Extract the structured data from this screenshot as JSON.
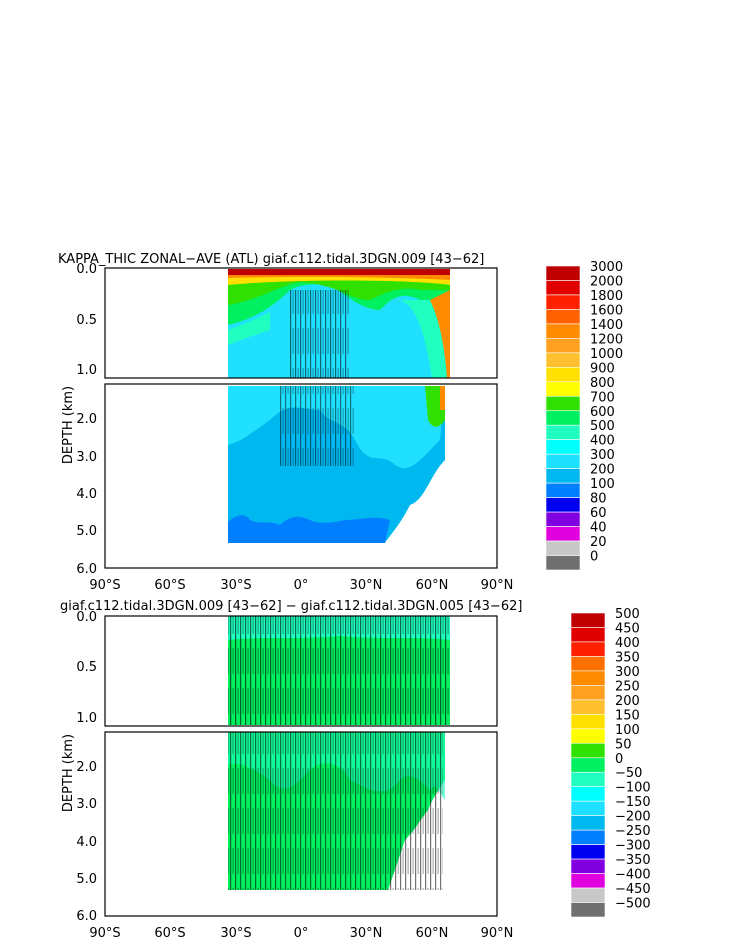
{
  "chart_data": [
    {
      "type": "heatmap",
      "title": "KAPPA_THIC ZONAL−AVE (ATL) giaf.c112.tidal.3DGN.009 [43−62]",
      "ylabel": "DEPTH (km)",
      "x_ticks": [
        "90°S",
        "60°S",
        "30°S",
        "0°",
        "30°N",
        "60°N",
        "90°N"
      ],
      "x_lim": [
        -90,
        90
      ],
      "y_ticks_upper": [
        "0.0",
        "0.5",
        "1.0"
      ],
      "y_ticks_lower": [
        "2.0",
        "3.0",
        "4.0",
        "5.0",
        "6.0"
      ],
      "y_lim_km": [
        6.0,
        0.0
      ],
      "data_lat_range": [
        -34,
        70
      ],
      "colorbar_labels": [
        "3000",
        "2000",
        "1800",
        "1600",
        "1400",
        "1200",
        "1000",
        "900",
        "800",
        "700",
        "600",
        "500",
        "400",
        "300",
        "200",
        "100",
        "80",
        "60",
        "40",
        "20",
        "0"
      ],
      "colors": [
        "#c00000",
        "#e00000",
        "#ff2000",
        "#ff6000",
        "#ff8c00",
        "#ffa020",
        "#ffc030",
        "#ffe000",
        "#ffff00",
        "#30e000",
        "#00f060",
        "#20ffc0",
        "#00ffff",
        "#20e0ff",
        "#00b8f0",
        "#0080ff",
        "#0000f0",
        "#8000e0",
        "#e000e0",
        "#c8c8c8",
        "#707070"
      ]
    },
    {
      "type": "heatmap",
      "title": "giaf.c112.tidal.3DGN.009 [43−62] − giaf.c112.tidal.3DGN.005 [43−62]",
      "ylabel": "DEPTH (km)",
      "x_ticks": [
        "90°S",
        "60°S",
        "30°S",
        "0°",
        "30°N",
        "60°N",
        "90°N"
      ],
      "x_lim": [
        -90,
        90
      ],
      "y_ticks_upper": [
        "0.0",
        "0.5",
        "1.0"
      ],
      "y_ticks_lower": [
        "2.0",
        "3.0",
        "4.0",
        "5.0",
        "6.0"
      ],
      "y_lim_km": [
        6.0,
        0.0
      ],
      "data_lat_range": [
        -34,
        70
      ],
      "colorbar_labels": [
        "500",
        "450",
        "400",
        "350",
        "300",
        "250",
        "200",
        "150",
        "100",
        "50",
        "0",
        "−50",
        "−100",
        "−150",
        "−200",
        "−250",
        "−300",
        "−350",
        "−400",
        "−450",
        "−500"
      ],
      "colors": [
        "#c00000",
        "#e00000",
        "#ff2000",
        "#ff7000",
        "#ff8c00",
        "#ffa020",
        "#ffc030",
        "#ffe000",
        "#ffff00",
        "#30e000",
        "#00f060",
        "#20ffc0",
        "#00ffff",
        "#20e0ff",
        "#00b8f0",
        "#0080ff",
        "#0000f0",
        "#8000e0",
        "#e000e0",
        "#c8c8c8",
        "#707070"
      ]
    }
  ]
}
